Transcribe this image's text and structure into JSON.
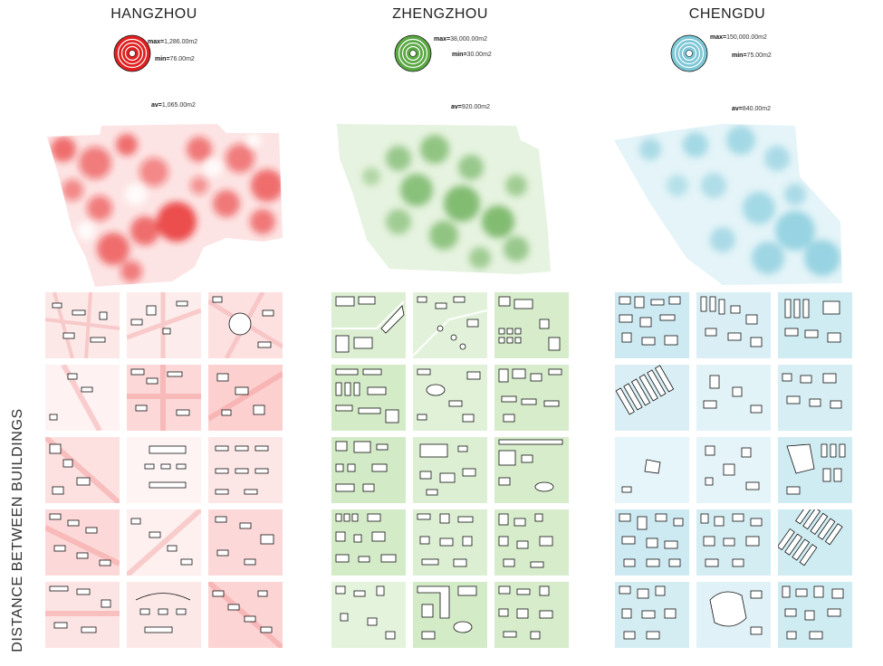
{
  "side_label": "DISTANCE BETWEEN BUILDINGS",
  "cities": [
    {
      "name": "HANGZHOU",
      "color": "#e02020",
      "light": "#fbd4d4",
      "max_key": "max=",
      "max_val": "1,286.00m2",
      "min_key": "min=",
      "min_val": "76.00m2",
      "av_key": "av=",
      "av_val": "1,065.00m2"
    },
    {
      "name": "ZHENGZHOU",
      "color": "#3c8c2c",
      "light": "#cfe8c4",
      "max_key": "max=",
      "max_val": "38,000.00m2",
      "min_key": "min=",
      "min_val": "30.00m2",
      "av_key": "av=",
      "av_val": "920.00m2"
    },
    {
      "name": "CHENGDU",
      "color": "#3a8a9c",
      "light": "#c4e6ef",
      "max_key": "max=",
      "max_val": "150,000.00m2",
      "min_key": "min=",
      "min_val": "75.00m2",
      "av_key": "av=",
      "av_val": "840.00m2"
    }
  ]
}
